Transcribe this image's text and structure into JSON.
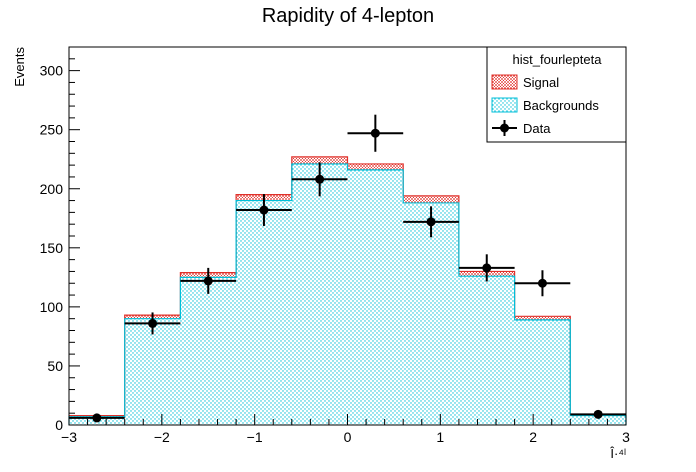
{
  "chart_data": {
    "type": "bar",
    "title": "Rapidity of 4-lepton",
    "xlabel": "Î·⁴ˡ",
    "ylabel": "Events",
    "xlim": [
      -3,
      3
    ],
    "ylim": [
      0,
      320
    ],
    "x_ticks": [
      "−3",
      "−2",
      "−1",
      "0",
      "1",
      "2",
      "3"
    ],
    "y_ticks": [
      "0",
      "50",
      "100",
      "150",
      "200",
      "250",
      "300"
    ],
    "grid": false,
    "legend_position": "top-right",
    "legend": {
      "header": "hist_fourlepteta",
      "entries": [
        "Signal",
        "Backgrounds",
        "Data"
      ]
    },
    "bin_edges": [
      -3.0,
      -2.4,
      -1.8,
      -1.2,
      -0.6,
      0.0,
      0.6,
      1.2,
      1.8,
      2.4,
      3.0
    ],
    "series": [
      {
        "name": "Backgrounds",
        "kind": "stacked-histogram",
        "color": "#00bfd8",
        "values": [
          7,
          90,
          125,
          190,
          221,
          216,
          188,
          126,
          89,
          8
        ]
      },
      {
        "name": "Signal",
        "kind": "stacked-histogram",
        "color": "#e0302a",
        "values": [
          1,
          3,
          4,
          5,
          6,
          5,
          6,
          4,
          3,
          1
        ]
      },
      {
        "name": "Data",
        "kind": "points-with-errors",
        "color": "#000000",
        "x": [
          -2.7,
          -2.1,
          -1.5,
          -0.9,
          -0.3,
          0.3,
          0.9,
          1.5,
          2.1,
          2.7
        ],
        "values": [
          6,
          86,
          122,
          182,
          208,
          247,
          172,
          133,
          120,
          9
        ],
        "y_err": [
          2.4,
          9.3,
          11.0,
          13.5,
          14.4,
          15.7,
          13.1,
          11.5,
          11.0,
          3.0
        ]
      }
    ]
  }
}
